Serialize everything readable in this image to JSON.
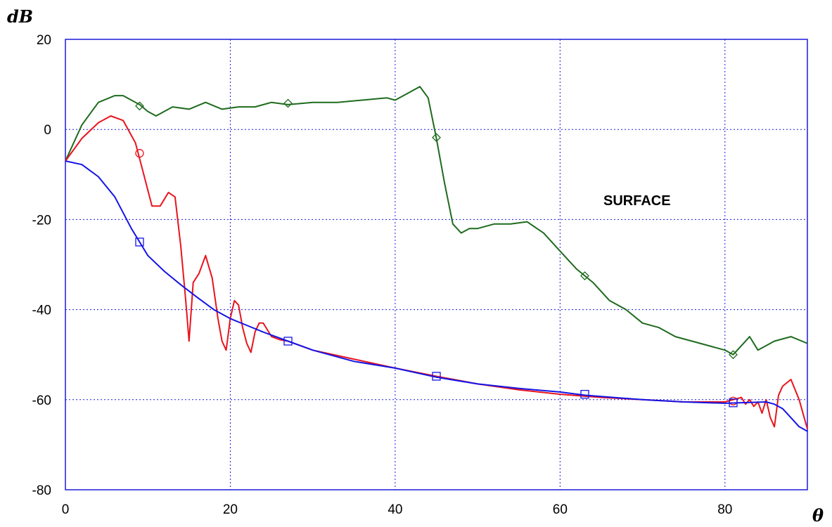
{
  "chart_data": {
    "type": "line",
    "ylabel": "dB",
    "xlabel": "θ",
    "xlim": [
      0,
      90
    ],
    "ylim": [
      -80,
      20
    ],
    "x_ticks": [
      "0",
      "20",
      "40",
      "60",
      "80"
    ],
    "y_ticks": [
      "20",
      "0",
      "-20",
      "-40",
      "-60",
      "-80"
    ],
    "grid": true,
    "annotation": "SURFACE",
    "series": [
      {
        "color": "#1e6b1e",
        "marker": "diamond",
        "x": [
          0,
          2,
          4,
          6,
          7,
          9,
          10,
          11,
          13,
          15,
          17,
          19,
          21,
          23,
          25,
          27,
          30,
          33,
          36,
          39,
          40,
          41,
          42,
          43,
          44,
          45,
          46,
          47,
          48,
          49,
          50,
          52,
          54,
          56,
          58,
          60,
          62,
          64,
          66,
          68,
          70,
          72,
          74,
          76,
          78,
          80,
          81,
          82,
          83,
          84,
          86,
          88,
          90
        ],
        "values": [
          -7,
          1,
          6,
          7.5,
          7.5,
          5.5,
          4,
          3,
          5,
          4.5,
          6,
          4.5,
          5,
          5,
          6,
          5.5,
          6,
          6,
          6.5,
          7,
          6.5,
          7.5,
          8.5,
          9.5,
          7,
          -2,
          -12,
          -21,
          -23,
          -22,
          -22,
          -21,
          -21,
          -20.5,
          -23,
          -27,
          -31,
          -34,
          -38,
          -40,
          -43,
          -44,
          -46,
          -47,
          -48,
          -49,
          -50,
          -48,
          -46,
          -49,
          -47,
          -46,
          -47.5
        ],
        "marker_x": [
          9,
          27,
          45,
          63,
          81
        ],
        "marker_values": [
          5.2,
          5.8,
          -1.8,
          -32.5,
          -50
        ]
      },
      {
        "color": "#e8141e",
        "marker": "circle",
        "x": [
          0,
          2,
          4,
          5.5,
          7,
          8.5,
          9.5,
          10.5,
          11.5,
          12.5,
          13.3,
          14,
          14.6,
          15,
          15.5,
          16.2,
          17,
          17.8,
          18.5,
          19,
          19.5,
          20,
          20.5,
          21,
          21.5,
          22,
          22.5,
          23,
          23.5,
          24,
          25,
          26,
          27,
          30,
          35,
          40,
          45,
          50,
          55,
          60,
          65,
          70,
          75,
          80,
          81,
          82,
          82.5,
          83,
          83.5,
          84,
          84.5,
          85,
          85.5,
          86,
          86.5,
          87,
          88,
          89,
          90
        ],
        "values": [
          -7,
          -2,
          1.5,
          3,
          2,
          -3,
          -10,
          -17,
          -17,
          -14,
          -15,
          -26,
          -38,
          -47,
          -34,
          -32,
          -28,
          -33,
          -42,
          -47,
          -49,
          -42,
          -38,
          -39,
          -44,
          -47.5,
          -49.5,
          -45,
          -43,
          -43,
          -46,
          -46.7,
          -47,
          -49,
          -51,
          -53,
          -54.8,
          -56.5,
          -57.8,
          -58.8,
          -59.5,
          -60,
          -60.5,
          -60.5,
          -60,
          -59.5,
          -61,
          -60,
          -61.5,
          -60.5,
          -63,
          -60,
          -64,
          -66,
          -59,
          -57,
          -55.5,
          -60,
          -66.5
        ],
        "marker_x": [
          9,
          81
        ],
        "marker_values": [
          -5.3,
          -60.3
        ]
      },
      {
        "color": "#1414e6",
        "marker": "square",
        "x": [
          0,
          2,
          4,
          6,
          7,
          8,
          9,
          10,
          12,
          14,
          16,
          18,
          20,
          22,
          24,
          27,
          30,
          35,
          40,
          45,
          50,
          55,
          60,
          63,
          65,
          70,
          75,
          80,
          85,
          86,
          87,
          88,
          89,
          90
        ],
        "values": [
          -7,
          -7.8,
          -10.5,
          -15,
          -18.5,
          -22,
          -25,
          -28,
          -31.5,
          -34.5,
          -37.3,
          -40,
          -42,
          -43.5,
          -45,
          -47,
          -49,
          -51.5,
          -53,
          -55,
          -56.5,
          -57.5,
          -58.3,
          -59,
          -59.3,
          -60,
          -60.5,
          -60.8,
          -60.5,
          -61,
          -62,
          -64,
          -66,
          -67
        ],
        "marker_x": [
          9,
          27,
          45,
          63,
          81
        ],
        "marker_values": [
          -25,
          -47,
          -54.8,
          -58.8,
          -60.7
        ]
      }
    ]
  }
}
